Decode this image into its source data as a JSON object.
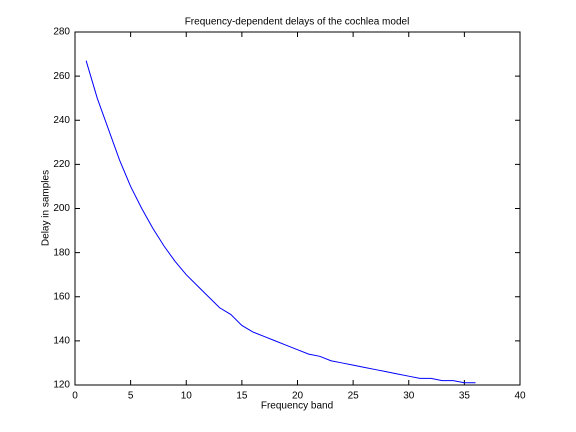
{
  "chart_data": {
    "type": "line",
    "title": "Frequency-dependent delays of the cochlea model",
    "x_label": "Frequency band",
    "y_label": "Delay in samples",
    "x": [
      1,
      2,
      3,
      4,
      5,
      6,
      7,
      8,
      9,
      10,
      11,
      12,
      13,
      14,
      15,
      16,
      17,
      18,
      19,
      20,
      21,
      22,
      23,
      24,
      25,
      26,
      27,
      28,
      29,
      30,
      31,
      32,
      33,
      34,
      35,
      36
    ],
    "values": [
      267,
      250,
      236,
      222,
      210,
      200,
      191,
      183,
      176,
      170,
      165,
      160,
      155,
      152,
      147,
      144,
      142,
      140,
      138,
      136,
      134,
      133,
      131,
      130,
      129,
      128,
      127,
      126,
      125,
      124,
      123,
      123,
      122,
      122,
      121,
      121
    ],
    "color": "#0000ff",
    "xlim": [
      0,
      40
    ],
    "xticks": [
      0,
      5,
      10,
      15,
      20,
      25,
      30,
      35,
      40
    ],
    "ylim": [
      120,
      280
    ],
    "yticks": [
      120,
      140,
      160,
      180,
      200,
      220,
      240,
      260,
      280
    ],
    "grid": false
  }
}
